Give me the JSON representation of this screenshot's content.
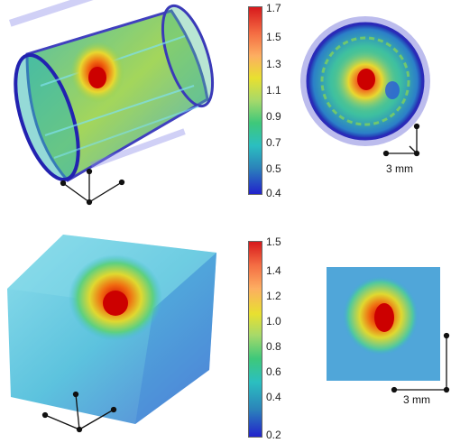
{
  "top_colorbar": {
    "ticks": [
      "1.7",
      "1.5",
      "1.3",
      "1.1",
      "0.9",
      "0.7",
      "0.5",
      "0.4"
    ]
  },
  "bottom_colorbar": {
    "ticks": [
      "1.5",
      "1.4",
      "1.2",
      "1.0",
      "0.8",
      "0.6",
      "0.4",
      "0.2"
    ]
  },
  "top_scale": {
    "label": "3 mm"
  },
  "bottom_scale": {
    "label": "3 mm"
  },
  "colors": {
    "low": "#2a2ad8",
    "mid": "#22c0a0",
    "high": "#e31a1c"
  }
}
